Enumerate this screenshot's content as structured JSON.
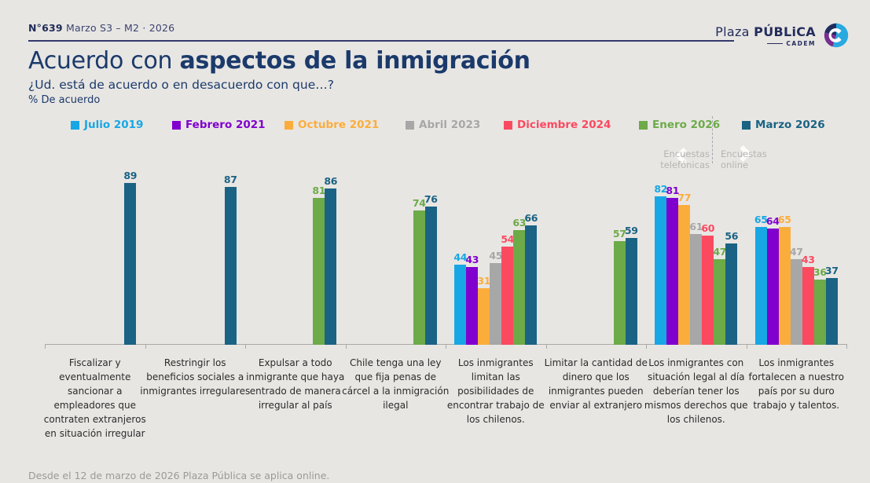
{
  "header": {
    "issue_number": "N°639",
    "edition": "Marzo S3 – M2 · 2026"
  },
  "brand": {
    "name_regular": "Plaza ",
    "name_bold": "PÚBLiCA",
    "subtext": "CADEM"
  },
  "title": {
    "regular": "Acuerdo con ",
    "bold": "aspectos de la inmigración"
  },
  "subtitle": "¿Ud. está de acuerdo o en desacuerdo con que…?",
  "unit_label": "% De acuerdo",
  "survey_mode_notes": {
    "left_line1": "Encuestas",
    "left_line2": "telefónicas",
    "right_line1": "Encuestas",
    "right_line2": "online"
  },
  "footer": "Desde el 12 de marzo de 2026 Plaza Pública se aplica online.",
  "chart_data": {
    "type": "bar",
    "grouped": true,
    "ylim": [
      0,
      100
    ],
    "grid": false,
    "legend_position": "top",
    "value_labels": true,
    "categories": [
      "Fiscalizar y eventualmente sancionar a empleadores que contraten extranjeros en situación irregular",
      "Restringir los beneficios sociales a inmigrantes irregulares",
      "Expulsar a todo inmigrante que haya entrado de manera irregular al país",
      "Chile tenga una ley que fija penas de cárcel a la inmigración ilegal",
      "Los inmigrantes limitan las posibilidades de encontrar trabajo de los chilenos.",
      "Limitar la cantidad de dinero que los inmigrantes pueden enviar al extranjero",
      "Los inmigrantes con situación legal al día deberían tener los mismos derechos que los chilenos.",
      "Los inmigrantes fortalecen a nuestro país por su duro trabajo y talentos."
    ],
    "series": [
      {
        "name": "Julio 2019",
        "color": "#17A7E5",
        "values": [
          null,
          null,
          null,
          null,
          44,
          null,
          82,
          65
        ]
      },
      {
        "name": "Febrero 2021",
        "color": "#8000CE",
        "values": [
          null,
          null,
          null,
          null,
          43,
          null,
          81,
          64
        ]
      },
      {
        "name": "Octubre 2021",
        "color": "#FBAD3C",
        "values": [
          null,
          null,
          null,
          null,
          31,
          null,
          77,
          65
        ]
      },
      {
        "name": "Abril 2023",
        "color": "#A7A7A7",
        "values": [
          null,
          null,
          null,
          null,
          45,
          null,
          61,
          47
        ]
      },
      {
        "name": "Diciembre 2024",
        "color": "#FB4A60",
        "values": [
          null,
          null,
          null,
          null,
          54,
          null,
          60,
          43
        ]
      },
      {
        "name": "Enero 2026",
        "color": "#6CAB48",
        "values": [
          null,
          null,
          81,
          74,
          63,
          57,
          47,
          36
        ]
      },
      {
        "name": "Marzo 2026",
        "color": "#1A6384",
        "values": [
          89,
          87,
          86,
          76,
          66,
          59,
          56,
          37
        ]
      }
    ]
  }
}
